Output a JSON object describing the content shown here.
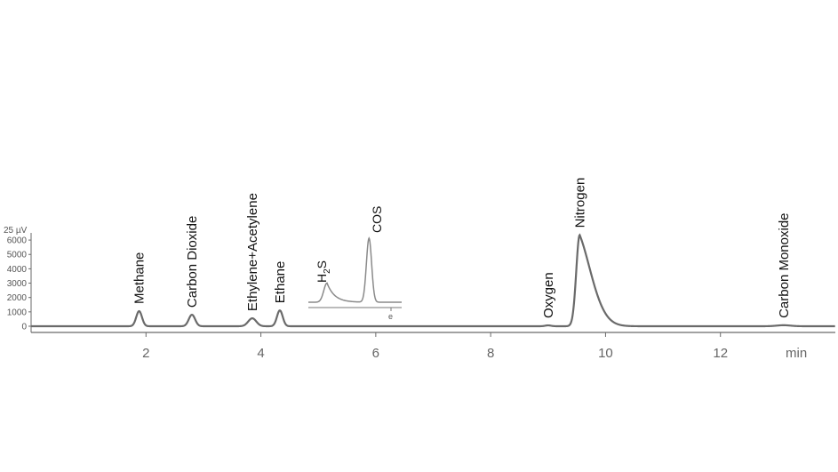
{
  "chart_data": {
    "type": "line",
    "y_unit_label": "25 µV",
    "x_unit_label": "min",
    "xlim": [
      0,
      14
    ],
    "ylim": [
      0,
      6500
    ],
    "x_ticks": [
      2,
      4,
      6,
      8,
      10,
      12
    ],
    "y_ticks": [
      0,
      1000,
      2000,
      3000,
      4000,
      5000,
      6000
    ],
    "grid": false,
    "colors": {
      "trace": "#6a6a6a",
      "axis": "#6a6a6a",
      "text": "#111111"
    },
    "series": [
      {
        "peaks": [
          {
            "label": "Methane",
            "x": 1.88,
            "height": 1050,
            "width": 0.05
          },
          {
            "label": "Carbon Dioxide",
            "x": 2.8,
            "height": 800,
            "width": 0.055
          },
          {
            "label": "Ethylene+Acetylene",
            "x": 3.85,
            "height": 550,
            "width": 0.07
          },
          {
            "label": "Ethane",
            "x": 4.33,
            "height": 1100,
            "width": 0.05
          },
          {
            "label": "Oxygen",
            "x": 9.0,
            "height": 60,
            "width": 0.05
          },
          {
            "label": "Nitrogen",
            "x": 9.55,
            "height": 6350,
            "width": 0.06,
            "tail": 0.22
          },
          {
            "label": "Carbon Monoxide",
            "x": 13.1,
            "height": 70,
            "width": 0.12
          }
        ]
      }
    ],
    "inset": {
      "peaks": [
        {
          "label_main": "H",
          "label_sub": "2",
          "label_end": "S",
          "x": 0.2,
          "height": 0.3
        },
        {
          "label_main": "COS",
          "x": 0.65,
          "height": 1.0
        }
      ],
      "tick_label": "e"
    }
  }
}
